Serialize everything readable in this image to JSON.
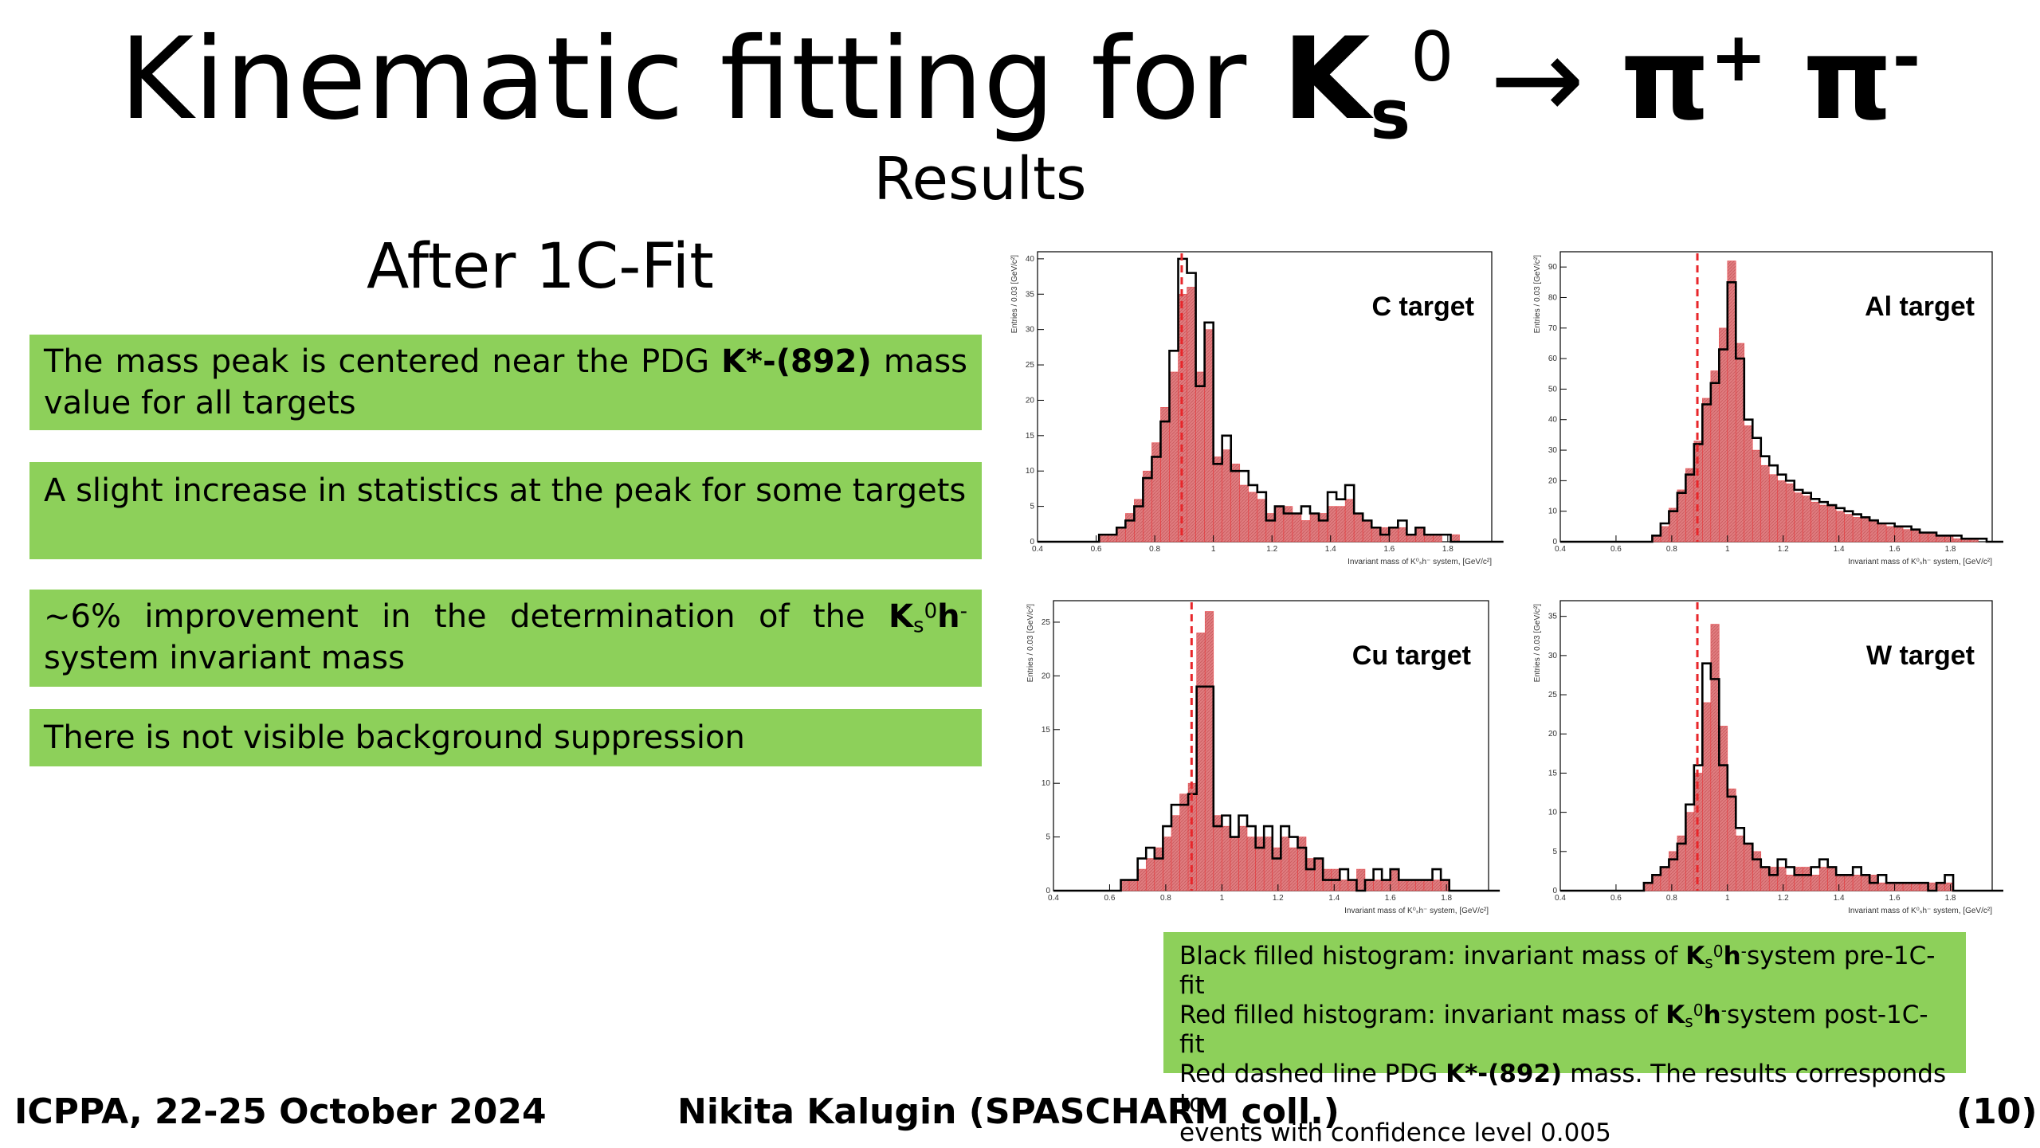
{
  "title": {
    "main": "Kinematic fitting for ",
    "K": "K",
    "s": "s",
    "zero": "0",
    "arrow": " → ",
    "pi": "π",
    "plus": "+",
    "space": " ",
    "minus": "-"
  },
  "subtitle": "Results",
  "section_heading": "After 1C-Fit",
  "boxes": [
    {
      "pre": "The mass peak is centered near the PDG ",
      "bold": "K*-(892)",
      "post": " mass value for all targets"
    },
    {
      "text": "A slight increase in statistics at the peak for some targets"
    },
    {
      "pre": "~6% improvement in the determination of the ",
      "K": "K",
      "s": "s",
      "zero": "0",
      "h": "h",
      "minus": "-",
      "post": " system invariant mass"
    },
    {
      "text": "There is not visible background suppression"
    }
  ],
  "legend": {
    "l1_pre": "Black filled histogram: invariant mass of ",
    "l1_post": "system pre-1C-fit",
    "l2_pre": "Red filled histogram: invariant mass of ",
    "l2_post": "system post-1C-fit",
    "l3_pre": "Red dashed line PDG ",
    "l3_bold": "K*-(892)",
    "l3_post": " mass. The results corresponds to",
    "l4": "events with confidence level 0.005",
    "K": "K",
    "s": "s",
    "zero": "0",
    "h": "h",
    "minus": "-"
  },
  "footer": {
    "left": "ICPPA, 22-25 October 2024",
    "center": "Nikita Kalugin (SPASCHARM coll.)",
    "right": "(10)"
  },
  "colors": {
    "box": "#8dd05a",
    "red": "#e8262a",
    "red_fill": "#e07d80",
    "black": "#000000"
  },
  "chart_data": [
    {
      "type": "bar",
      "title": "C target",
      "xlabel": "Invariant mass of K⁰ₛh⁻ system, [GeV/c²]",
      "ylabel": "Entries / 0.03 [GeV/c²]",
      "xlim": [
        0.4,
        1.95
      ],
      "ylim": [
        0,
        41
      ],
      "bin_width": 0.03,
      "x_start": 0.4,
      "pdg_mass": 0.892,
      "xticks": [
        0.4,
        0.6,
        0.8,
        1,
        1.2,
        1.4,
        1.6,
        1.8
      ],
      "yticks": [
        0,
        5,
        10,
        15,
        20,
        25,
        30,
        35,
        40
      ],
      "series": [
        {
          "name": "pre-1C-fit",
          "values": [
            0,
            0,
            0,
            0,
            0,
            0,
            0,
            1,
            1,
            2,
            3,
            5,
            9,
            12,
            17,
            27,
            40,
            38,
            22,
            31,
            11,
            15,
            10,
            10,
            8,
            7,
            3,
            5,
            4,
            4,
            5,
            4,
            3,
            7,
            6,
            8,
            4,
            3,
            2,
            1,
            2,
            3,
            1,
            2,
            1,
            1,
            1,
            0,
            0,
            0,
            0,
            0,
            0
          ]
        },
        {
          "name": "post-1C-fit",
          "values": [
            0,
            0,
            0,
            0,
            0,
            0,
            0,
            1,
            1,
            2,
            4,
            6,
            10,
            14,
            19,
            24,
            35,
            36,
            24,
            30,
            12,
            13,
            11,
            8,
            7,
            6,
            4,
            5,
            5,
            4,
            3,
            4,
            4,
            5,
            5,
            6,
            4,
            3,
            2,
            2,
            2,
            2,
            1,
            2,
            1,
            1,
            0,
            1,
            0,
            0,
            0,
            0,
            0
          ]
        }
      ]
    },
    {
      "type": "bar",
      "title": "Al target",
      "xlabel": "Invariant mass of K⁰ₛh⁻ system, [GeV/c²]",
      "ylabel": "Entries / 0.03 [GeV/c²]",
      "xlim": [
        0.4,
        1.95
      ],
      "ylim": [
        0,
        95
      ],
      "bin_width": 0.03,
      "x_start": 0.4,
      "pdg_mass": 0.892,
      "xticks": [
        0.4,
        0.6,
        0.8,
        1,
        1.2,
        1.4,
        1.6,
        1.8
      ],
      "yticks": [
        0,
        10,
        20,
        30,
        40,
        50,
        60,
        70,
        80,
        90
      ],
      "series": [
        {
          "name": "pre-1C-fit",
          "values": [
            0,
            0,
            0,
            0,
            0,
            0,
            0,
            0,
            0,
            0,
            0,
            2,
            6,
            10,
            16,
            22,
            32,
            45,
            52,
            63,
            85,
            60,
            40,
            34,
            28,
            25,
            22,
            20,
            17,
            16,
            14,
            13,
            12,
            11,
            10,
            9,
            8,
            7,
            6,
            6,
            5,
            5,
            4,
            3,
            3,
            2,
            2,
            2,
            1,
            1,
            1,
            0,
            0
          ]
        },
        {
          "name": "post-1C-fit",
          "values": [
            0,
            0,
            0,
            0,
            0,
            0,
            0,
            0,
            0,
            0,
            0,
            2,
            5,
            11,
            17,
            24,
            33,
            47,
            56,
            70,
            92,
            65,
            38,
            30,
            25,
            22,
            20,
            19,
            16,
            15,
            13,
            12,
            12,
            10,
            9,
            8,
            8,
            7,
            6,
            5,
            5,
            4,
            4,
            3,
            3,
            2,
            2,
            1,
            1,
            1,
            0,
            0,
            0
          ]
        }
      ]
    },
    {
      "type": "bar",
      "title": "Cu target",
      "xlabel": "Invariant mass of K⁰ₛh⁻ system, [GeV/c²]",
      "ylabel": "Entries / 0.03 [GeV/c²]",
      "xlim": [
        0.4,
        1.95
      ],
      "ylim": [
        0,
        27
      ],
      "bin_width": 0.03,
      "x_start": 0.4,
      "pdg_mass": 0.892,
      "xticks": [
        0.4,
        0.6,
        0.8,
        1,
        1.2,
        1.4,
        1.6,
        1.8
      ],
      "yticks": [
        0,
        5,
        10,
        15,
        20,
        25
      ],
      "series": [
        {
          "name": "pre-1C-fit",
          "values": [
            0,
            0,
            0,
            0,
            0,
            0,
            0,
            0,
            1,
            1,
            3,
            4,
            3,
            6,
            8,
            8,
            9,
            19,
            19,
            6,
            7,
            5,
            7,
            6,
            4,
            6,
            3,
            6,
            5,
            4,
            2,
            3,
            1,
            1,
            2,
            1,
            0,
            1,
            2,
            1,
            2,
            1,
            1,
            1,
            1,
            2,
            1,
            0,
            0,
            0,
            0,
            0,
            0
          ]
        },
        {
          "name": "post-1C-fit",
          "values": [
            0,
            0,
            0,
            0,
            0,
            0,
            0,
            0,
            1,
            1,
            2,
            3,
            4,
            5,
            7,
            9,
            10,
            24,
            26,
            7,
            6,
            5,
            6,
            5,
            5,
            5,
            4,
            5,
            4,
            5,
            3,
            3,
            2,
            2,
            1,
            1,
            2,
            1,
            1,
            1,
            2,
            1,
            1,
            1,
            1,
            1,
            1,
            0,
            0,
            0,
            0,
            0,
            0
          ]
        }
      ]
    },
    {
      "type": "bar",
      "title": "W target",
      "xlabel": "Invariant mass of K⁰ₛh⁻ system, [GeV/c²]",
      "ylabel": "Entries / 0.03 [GeV/c²]",
      "xlim": [
        0.4,
        1.95
      ],
      "ylim": [
        0,
        37
      ],
      "bin_width": 0.03,
      "x_start": 0.4,
      "pdg_mass": 0.892,
      "xticks": [
        0.4,
        0.6,
        0.8,
        1,
        1.2,
        1.4,
        1.6,
        1.8
      ],
      "yticks": [
        0,
        5,
        10,
        15,
        20,
        25,
        30,
        35
      ],
      "series": [
        {
          "name": "pre-1C-fit",
          "values": [
            0,
            0,
            0,
            0,
            0,
            0,
            0,
            0,
            0,
            0,
            1,
            2,
            3,
            4,
            6,
            11,
            16,
            29,
            27,
            16,
            12,
            8,
            6,
            4,
            3,
            2,
            4,
            3,
            2,
            2,
            3,
            4,
            3,
            2,
            2,
            3,
            2,
            1,
            2,
            1,
            1,
            1,
            1,
            1,
            0,
            1,
            2,
            0,
            0,
            0,
            0,
            0,
            0
          ]
        },
        {
          "name": "post-1C-fit",
          "values": [
            0,
            0,
            0,
            0,
            0,
            0,
            0,
            0,
            0,
            0,
            1,
            2,
            3,
            5,
            7,
            10,
            15,
            24,
            34,
            21,
            13,
            7,
            6,
            5,
            3,
            3,
            3,
            2,
            3,
            3,
            2,
            3,
            3,
            2,
            2,
            2,
            2,
            2,
            1,
            1,
            1,
            1,
            1,
            1,
            1,
            1,
            1,
            0,
            0,
            0,
            0,
            0,
            0
          ]
        }
      ]
    }
  ]
}
